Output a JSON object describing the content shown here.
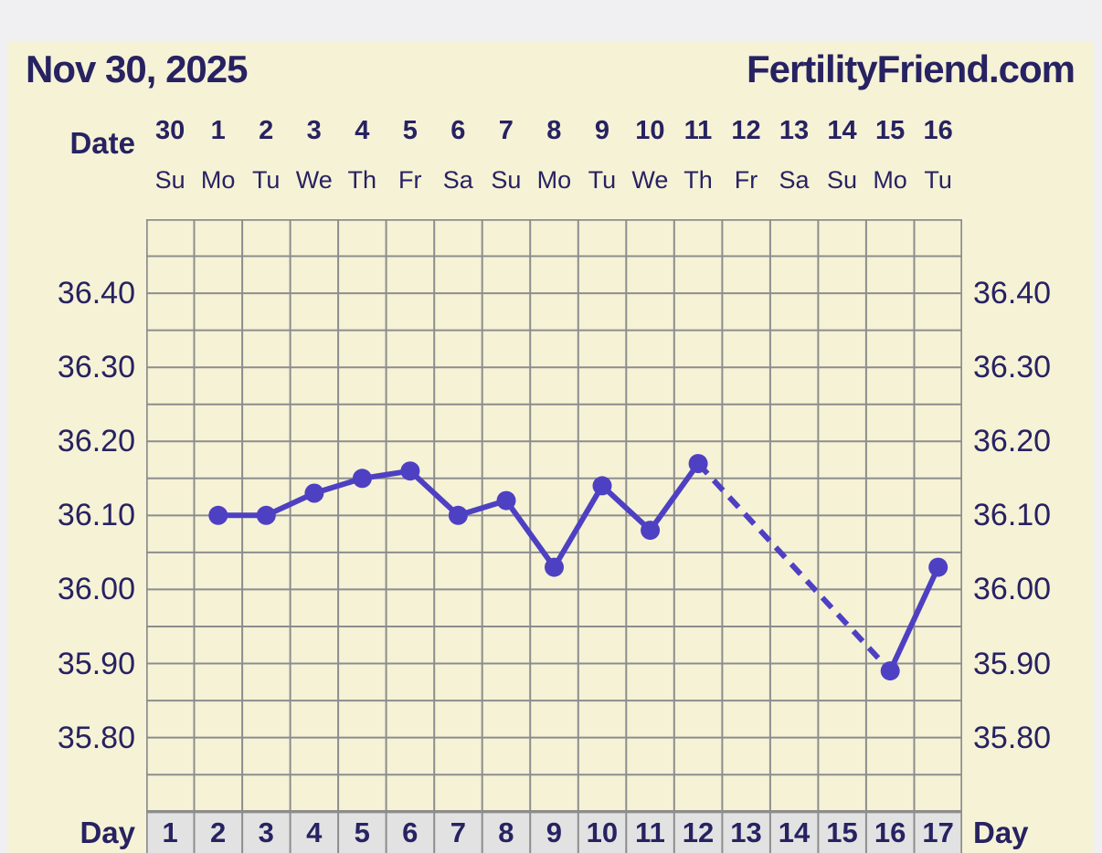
{
  "header": {
    "title": "Nov 30, 2025",
    "brand": "FertilityFriend.com"
  },
  "labels": {
    "date": "Date",
    "day_left": "Day",
    "day_right": "Day"
  },
  "colors": {
    "outer_bg": "#f0f0f2",
    "card_bg": "#f6f2d6",
    "text_navy": "#272261",
    "line": "#4e40c2",
    "grid": "#8d8d8d",
    "day_row_bg": "#e2e2e2"
  },
  "chart_data": {
    "type": "line",
    "x_axis": {
      "label": "Day",
      "days": [
        1,
        2,
        3,
        4,
        5,
        6,
        7,
        8,
        9,
        10,
        11,
        12,
        13,
        14,
        15,
        16,
        17
      ],
      "dates": [
        "30",
        "1",
        "2",
        "3",
        "4",
        "5",
        "6",
        "7",
        "8",
        "9",
        "10",
        "11",
        "12",
        "13",
        "14",
        "15",
        "16"
      ],
      "weekdays": [
        "Su",
        "Mo",
        "Tu",
        "We",
        "Th",
        "Fr",
        "Sa",
        "Su",
        "Mo",
        "Tu",
        "We",
        "Th",
        "Fr",
        "Sa",
        "Su",
        "Mo",
        "Tu"
      ]
    },
    "y_axis": {
      "ticks": [
        36.4,
        36.3,
        36.2,
        36.1,
        36.0,
        35.9,
        35.8
      ],
      "tick_labels": [
        "36.40",
        "36.30",
        "36.20",
        "36.10",
        "36.00",
        "35.90",
        "35.80"
      ],
      "ylim": [
        35.7,
        36.5
      ],
      "grid_step": 0.05,
      "grid": true
    },
    "series": [
      {
        "name": "temperature",
        "points": [
          {
            "day": 2,
            "temp": 36.1
          },
          {
            "day": 3,
            "temp": 36.1
          },
          {
            "day": 4,
            "temp": 36.13
          },
          {
            "day": 5,
            "temp": 36.15
          },
          {
            "day": 6,
            "temp": 36.16
          },
          {
            "day": 7,
            "temp": 36.1
          },
          {
            "day": 8,
            "temp": 36.12
          },
          {
            "day": 9,
            "temp": 36.03
          },
          {
            "day": 10,
            "temp": 36.14
          },
          {
            "day": 11,
            "temp": 36.08
          },
          {
            "day": 12,
            "temp": 36.17
          },
          {
            "day": 16,
            "temp": 35.89
          },
          {
            "day": 17,
            "temp": 36.03
          }
        ]
      }
    ],
    "missing_days": [
      1,
      13,
      14,
      15
    ],
    "dashed_segment_days": [
      [
        12,
        16
      ]
    ],
    "legend_position": "none"
  }
}
